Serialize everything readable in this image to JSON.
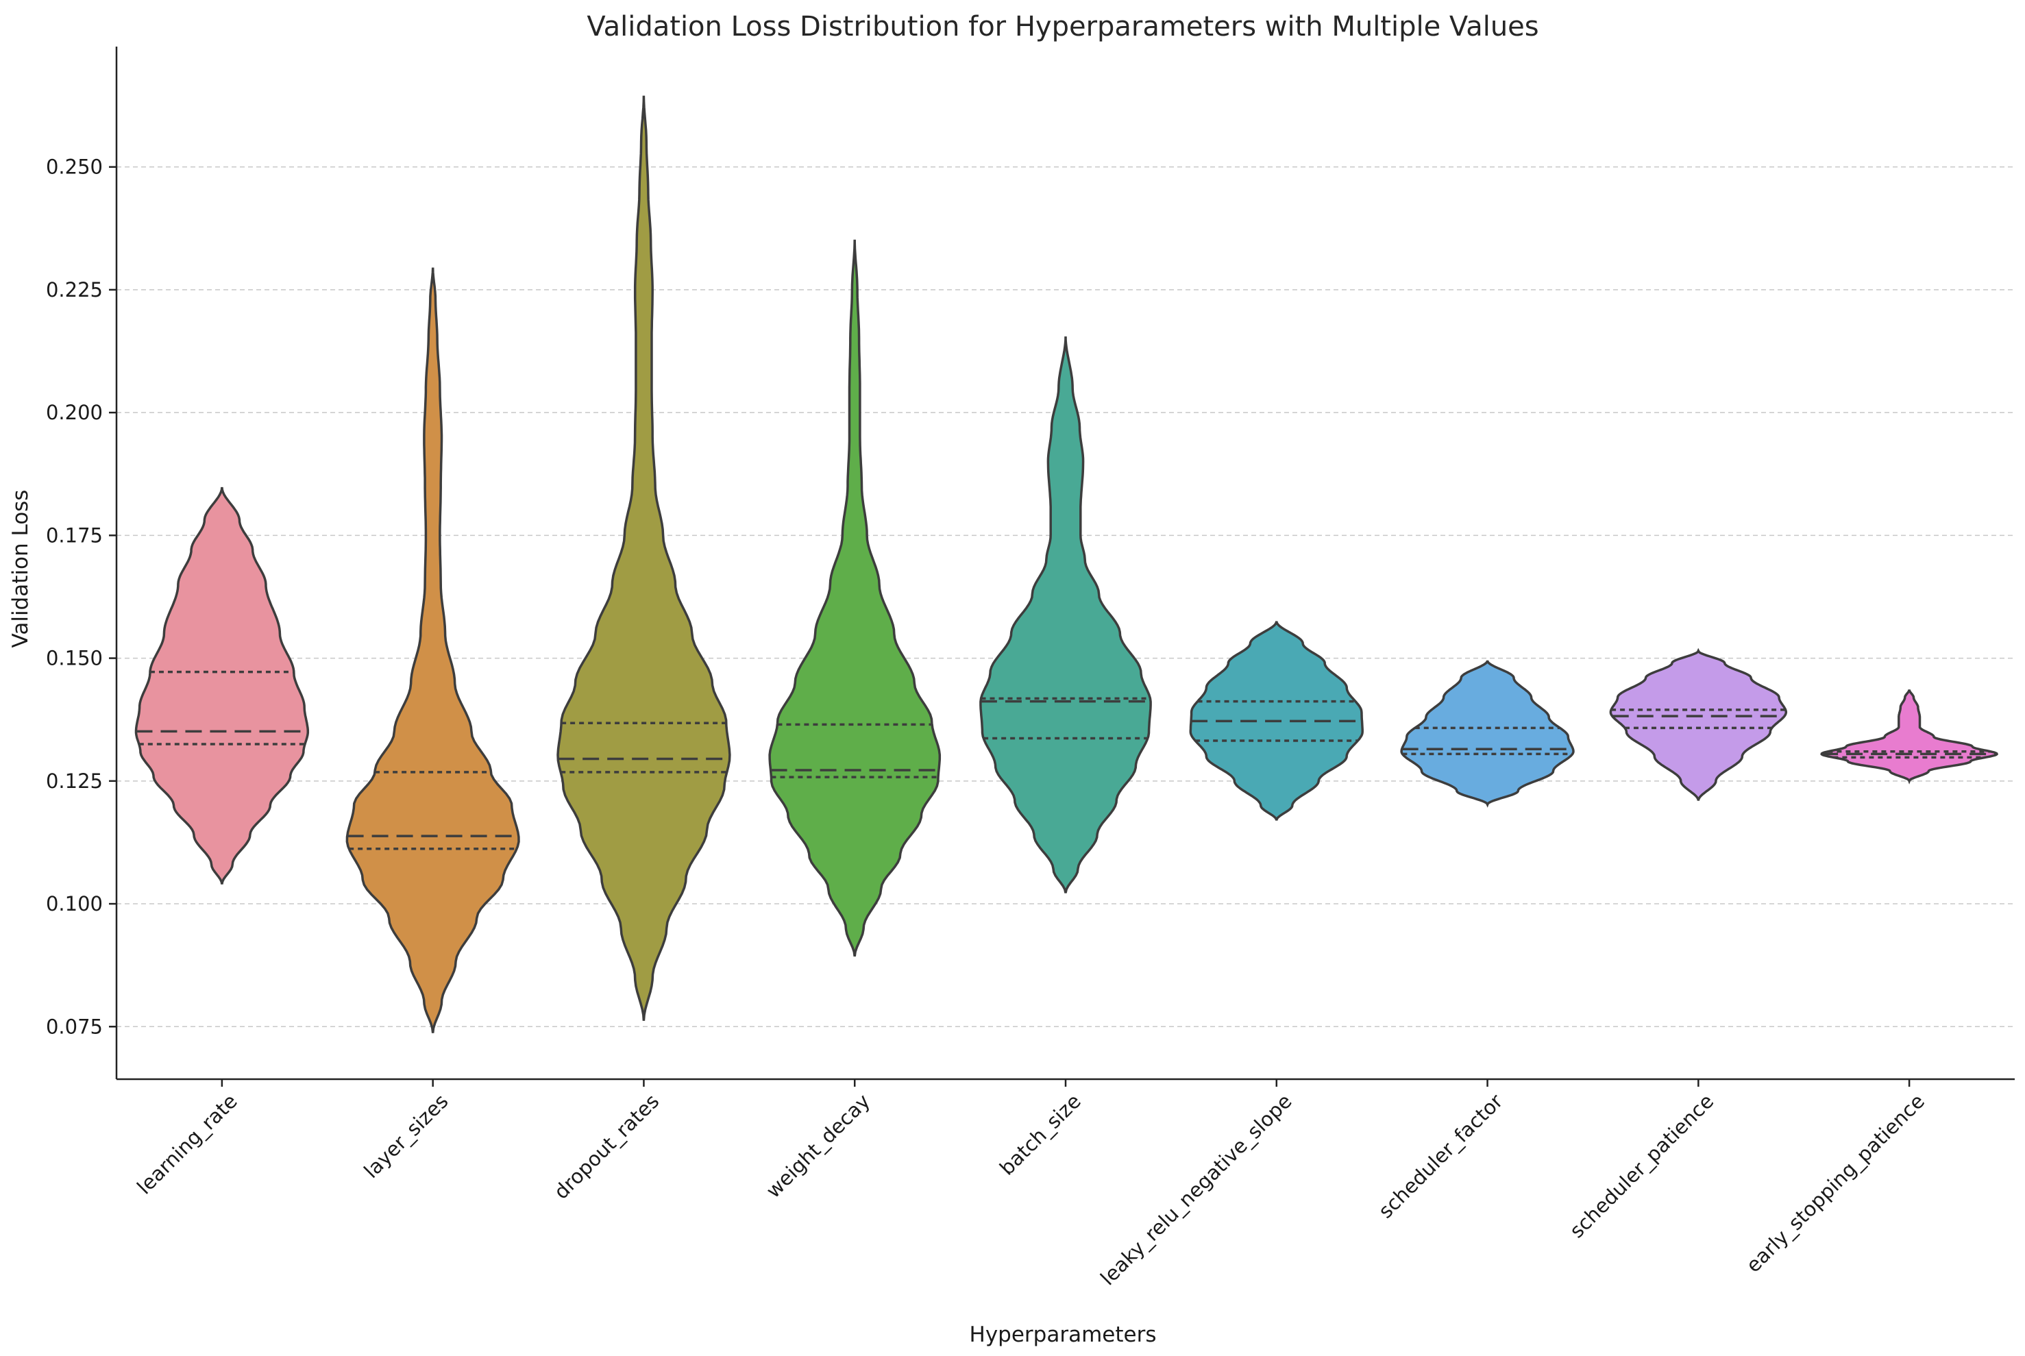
{
  "chart_data": {
    "type": "violin",
    "title": "Validation Loss Distribution for Hyperparameters with Multiple Values",
    "xlabel": "Hyperparameters",
    "ylabel": "Validation Loss",
    "ylim": [
      0.0643,
      0.2745
    ],
    "yticks": [
      "0.075",
      "0.100",
      "0.125",
      "0.150",
      "0.175",
      "0.200",
      "0.225",
      "0.250"
    ],
    "grid": "horizontal dashed",
    "categories": [
      "learning_rate",
      "layer_sizes",
      "dropout_rates",
      "weight_decay",
      "batch_size",
      "leaky_relu_negative_slope",
      "scheduler_factor",
      "scheduler_patience",
      "early_stopping_patience"
    ],
    "colors": [
      "#e8939f",
      "#d09048",
      "#a09c44",
      "#5fae4a",
      "#49a995",
      "#4aa9b4",
      "#68acdf",
      "#c49be9",
      "#e87ccf"
    ],
    "violins": [
      {
        "name": "learning_rate",
        "min": 0.104,
        "max": 0.1848,
        "q1": 0.1325,
        "median": 0.1351,
        "q3": 0.1472,
        "profile": [
          [
            0.104,
            0.0
          ],
          [
            0.108,
            0.12
          ],
          [
            0.114,
            0.32
          ],
          [
            0.12,
            0.55
          ],
          [
            0.126,
            0.78
          ],
          [
            0.131,
            0.93
          ],
          [
            0.135,
            0.98
          ],
          [
            0.14,
            0.94
          ],
          [
            0.147,
            0.82
          ],
          [
            0.155,
            0.66
          ],
          [
            0.165,
            0.5
          ],
          [
            0.172,
            0.35
          ],
          [
            0.178,
            0.2
          ],
          [
            0.1848,
            0.0
          ]
        ]
      },
      {
        "name": "layer_sizes",
        "min": 0.0737,
        "max": 0.2295,
        "q1": 0.1112,
        "median": 0.1138,
        "q3": 0.1268,
        "profile": [
          [
            0.0737,
            0.0
          ],
          [
            0.08,
            0.1
          ],
          [
            0.088,
            0.26
          ],
          [
            0.097,
            0.5
          ],
          [
            0.105,
            0.8
          ],
          [
            0.113,
            0.98
          ],
          [
            0.12,
            0.9
          ],
          [
            0.127,
            0.66
          ],
          [
            0.135,
            0.44
          ],
          [
            0.145,
            0.25
          ],
          [
            0.155,
            0.14
          ],
          [
            0.165,
            0.09
          ],
          [
            0.175,
            0.08
          ],
          [
            0.185,
            0.09
          ],
          [
            0.195,
            0.1
          ],
          [
            0.205,
            0.08
          ],
          [
            0.215,
            0.05
          ],
          [
            0.223,
            0.03
          ],
          [
            0.2295,
            0.0
          ]
        ]
      },
      {
        "name": "dropout_rates",
        "min": 0.0762,
        "max": 0.2645,
        "q1": 0.1268,
        "median": 0.1295,
        "q3": 0.1368,
        "profile": [
          [
            0.0762,
            0.0
          ],
          [
            0.085,
            0.1
          ],
          [
            0.095,
            0.26
          ],
          [
            0.105,
            0.48
          ],
          [
            0.115,
            0.72
          ],
          [
            0.124,
            0.92
          ],
          [
            0.13,
            0.98
          ],
          [
            0.137,
            0.94
          ],
          [
            0.145,
            0.78
          ],
          [
            0.155,
            0.55
          ],
          [
            0.165,
            0.36
          ],
          [
            0.175,
            0.22
          ],
          [
            0.185,
            0.13
          ],
          [
            0.195,
            0.1
          ],
          [
            0.205,
            0.09
          ],
          [
            0.215,
            0.09
          ],
          [
            0.225,
            0.1
          ],
          [
            0.235,
            0.08
          ],
          [
            0.245,
            0.05
          ],
          [
            0.255,
            0.03
          ],
          [
            0.2645,
            0.0
          ]
        ]
      },
      {
        "name": "weight_decay",
        "min": 0.0893,
        "max": 0.2352,
        "q1": 0.1258,
        "median": 0.1272,
        "q3": 0.1365,
        "profile": [
          [
            0.0893,
            0.0
          ],
          [
            0.095,
            0.1
          ],
          [
            0.103,
            0.3
          ],
          [
            0.11,
            0.52
          ],
          [
            0.118,
            0.76
          ],
          [
            0.125,
            0.95
          ],
          [
            0.13,
            0.97
          ],
          [
            0.137,
            0.88
          ],
          [
            0.145,
            0.68
          ],
          [
            0.155,
            0.45
          ],
          [
            0.165,
            0.28
          ],
          [
            0.175,
            0.14
          ],
          [
            0.185,
            0.08
          ],
          [
            0.195,
            0.06
          ],
          [
            0.205,
            0.06
          ],
          [
            0.215,
            0.05
          ],
          [
            0.225,
            0.03
          ],
          [
            0.2352,
            0.0
          ]
        ]
      },
      {
        "name": "batch_size",
        "min": 0.1022,
        "max": 0.2155,
        "q1": 0.1337,
        "median": 0.1412,
        "q3": 0.1418,
        "profile": [
          [
            0.1022,
            0.0
          ],
          [
            0.107,
            0.14
          ],
          [
            0.114,
            0.36
          ],
          [
            0.121,
            0.58
          ],
          [
            0.128,
            0.8
          ],
          [
            0.135,
            0.95
          ],
          [
            0.141,
            0.97
          ],
          [
            0.147,
            0.86
          ],
          [
            0.155,
            0.62
          ],
          [
            0.163,
            0.38
          ],
          [
            0.17,
            0.22
          ],
          [
            0.175,
            0.17
          ],
          [
            0.18,
            0.17
          ],
          [
            0.19,
            0.2
          ],
          [
            0.197,
            0.16
          ],
          [
            0.205,
            0.08
          ],
          [
            0.2155,
            0.0
          ]
        ]
      },
      {
        "name": "leaky_relu_negative_slope",
        "min": 0.117,
        "max": 0.1575,
        "q1": 0.1332,
        "median": 0.1372,
        "q3": 0.1412,
        "profile": [
          [
            0.117,
            0.0
          ],
          [
            0.12,
            0.18
          ],
          [
            0.125,
            0.48
          ],
          [
            0.13,
            0.8
          ],
          [
            0.135,
            0.98
          ],
          [
            0.139,
            0.97
          ],
          [
            0.144,
            0.8
          ],
          [
            0.149,
            0.55
          ],
          [
            0.153,
            0.3
          ],
          [
            0.1575,
            0.0
          ]
        ]
      },
      {
        "name": "scheduler_factor",
        "min": 0.1202,
        "max": 0.1495,
        "q1": 0.1305,
        "median": 0.1315,
        "q3": 0.1358,
        "profile": [
          [
            0.1202,
            0.0
          ],
          [
            0.123,
            0.35
          ],
          [
            0.127,
            0.75
          ],
          [
            0.131,
            0.98
          ],
          [
            0.134,
            0.92
          ],
          [
            0.138,
            0.7
          ],
          [
            0.142,
            0.5
          ],
          [
            0.146,
            0.3
          ],
          [
            0.1495,
            0.0
          ]
        ]
      },
      {
        "name": "scheduler_patience",
        "min": 0.121,
        "max": 0.1515,
        "q1": 0.1358,
        "median": 0.1382,
        "q3": 0.1395,
        "profile": [
          [
            0.121,
            0.0
          ],
          [
            0.125,
            0.2
          ],
          [
            0.13,
            0.5
          ],
          [
            0.135,
            0.82
          ],
          [
            0.139,
            1.0
          ],
          [
            0.142,
            0.92
          ],
          [
            0.146,
            0.6
          ],
          [
            0.149,
            0.3
          ],
          [
            0.1515,
            0.0
          ]
        ]
      },
      {
        "name": "early_stopping_patience",
        "min": 0.125,
        "max": 0.1436,
        "q1": 0.1298,
        "median": 0.1305,
        "q3": 0.131,
        "profile": [
          [
            0.125,
            0.0
          ],
          [
            0.127,
            0.22
          ],
          [
            0.129,
            0.7
          ],
          [
            0.1305,
            1.0
          ],
          [
            0.132,
            0.72
          ],
          [
            0.134,
            0.28
          ],
          [
            0.136,
            0.12
          ],
          [
            0.138,
            0.12
          ],
          [
            0.14,
            0.1
          ],
          [
            0.142,
            0.05
          ],
          [
            0.1436,
            0.0
          ]
        ]
      }
    ]
  }
}
